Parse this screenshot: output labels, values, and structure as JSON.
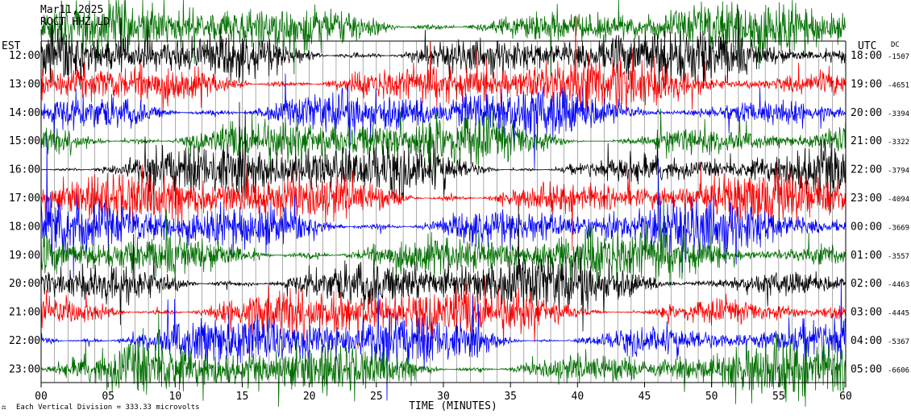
{
  "header": {
    "date": "Mar11,2025",
    "station": "ROCT HHZ LD"
  },
  "footer": {
    "scale_note": "Each Vertical Division = 333.33 microvolts"
  },
  "chart_data": {
    "type": "line",
    "title": "",
    "left_axis_title": "EST",
    "right_axis_title": "UTC",
    "dc_title": "DC",
    "xlabel": "TIME (MINUTES)",
    "xlim": [
      0,
      60
    ],
    "x_ticks": [
      "00",
      "05",
      "10",
      "15",
      "20",
      "25",
      "30",
      "35",
      "40",
      "45",
      "50",
      "55",
      "60"
    ],
    "trace_colors": [
      "#000000",
      "#ff0000",
      "#0000ff",
      "#007000"
    ],
    "rows": [
      {
        "est": "12:00",
        "utc": "18:00",
        "dc": "-1507"
      },
      {
        "est": "13:00",
        "utc": "19:00",
        "dc": "-4651"
      },
      {
        "est": "14:00",
        "utc": "20:00",
        "dc": "-3394"
      },
      {
        "est": "15:00",
        "utc": "21:00",
        "dc": "-3322"
      },
      {
        "est": "16:00",
        "utc": "22:00",
        "dc": "-3794"
      },
      {
        "est": "17:00",
        "utc": "23:00",
        "dc": "-4094"
      },
      {
        "est": "18:00",
        "utc": "00:00",
        "dc": "-3669"
      },
      {
        "est": "19:00",
        "utc": "01:00",
        "dc": "-3557"
      },
      {
        "est": "20:00",
        "utc": "02:00",
        "dc": "-4463"
      },
      {
        "est": "21:00",
        "utc": "03:00",
        "dc": "-4445"
      },
      {
        "est": "22:00",
        "utc": "04:00",
        "dc": "-5367"
      },
      {
        "est": "23:00",
        "utc": "05:00",
        "dc": "-6606"
      }
    ]
  }
}
